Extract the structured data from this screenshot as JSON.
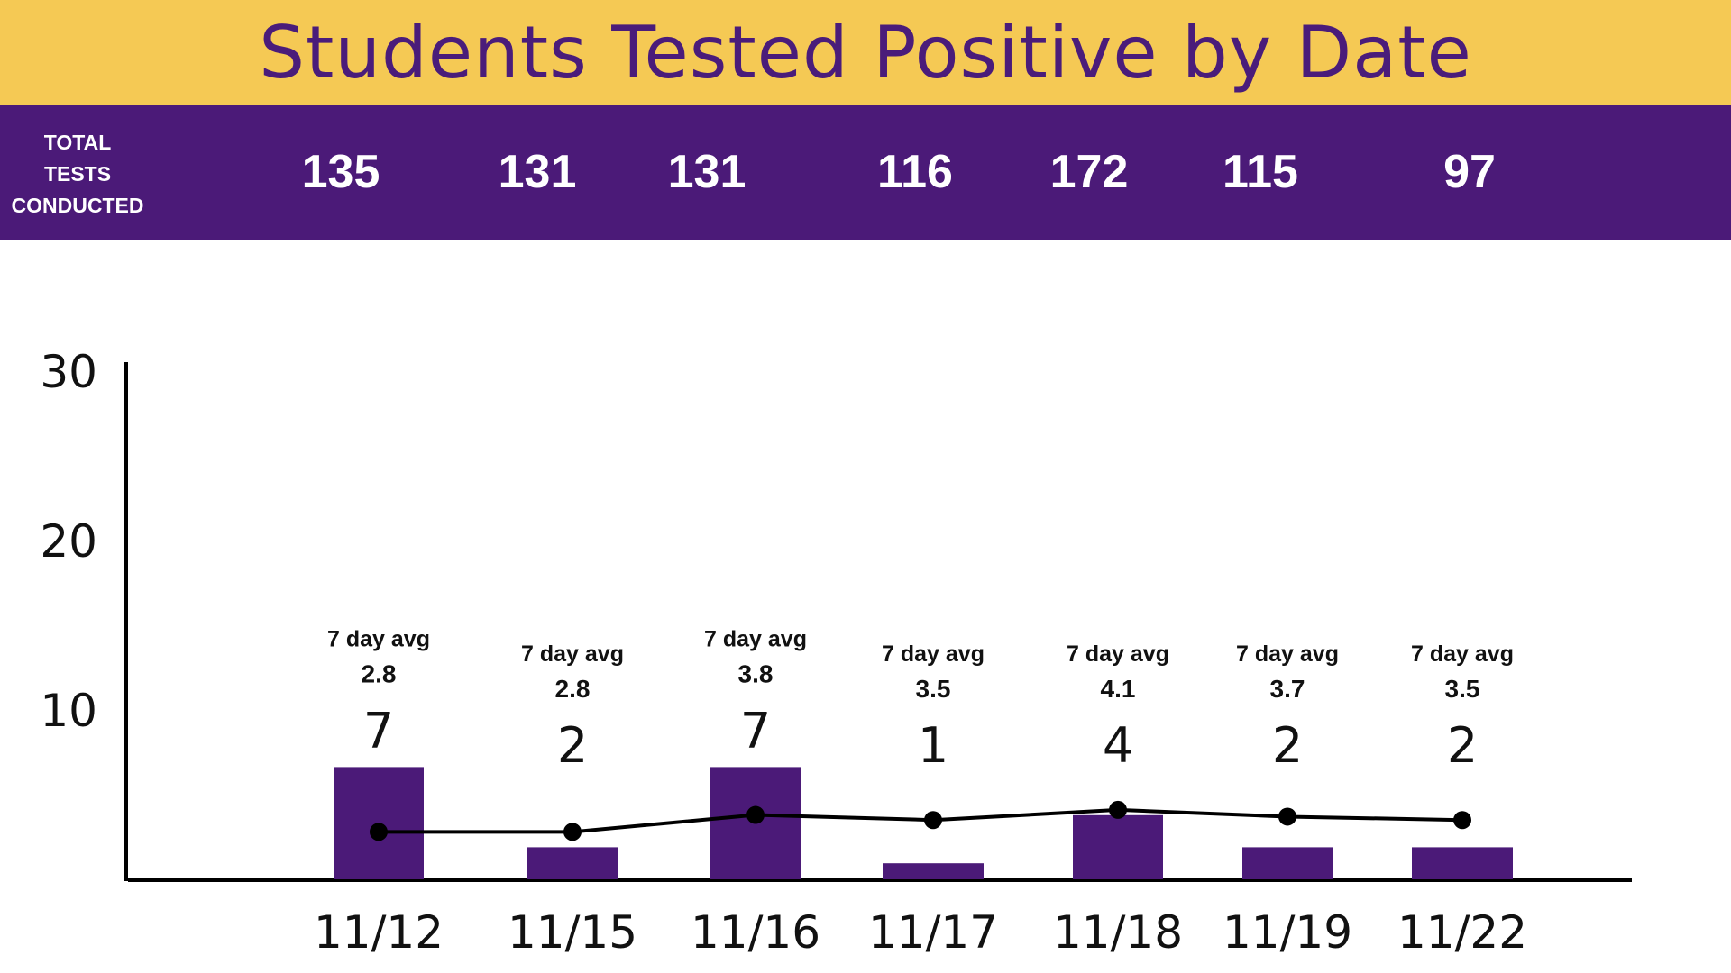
{
  "header": {
    "title": "Students Tested Positive by Date",
    "tests_label": "TOTAL\nTESTS\nCONDUCTED"
  },
  "colors": {
    "title_bg": "#f5c954",
    "title_text": "#4a1c7a",
    "bar": "#4b1a78",
    "line": "#000000"
  },
  "chart_data": {
    "type": "bar",
    "title": "Students Tested Positive by Date",
    "categories": [
      "11/12",
      "11/15",
      "11/16",
      "11/17",
      "11/18",
      "11/19",
      "11/22"
    ],
    "series": [
      {
        "values": [
          7,
          2,
          7,
          1,
          4,
          2,
          2
        ]
      },
      {
        "type": "line",
        "values": [
          2.8,
          2.8,
          3.8,
          3.5,
          4.1,
          3.7,
          3.5
        ]
      }
    ],
    "total_tests": [
      135,
      131,
      131,
      116,
      172,
      115,
      97
    ],
    "avg_label": "7 day avg",
    "yticks": [
      10,
      20,
      30
    ],
    "ylim": [
      0,
      30
    ],
    "grid": false,
    "legend": "none"
  }
}
